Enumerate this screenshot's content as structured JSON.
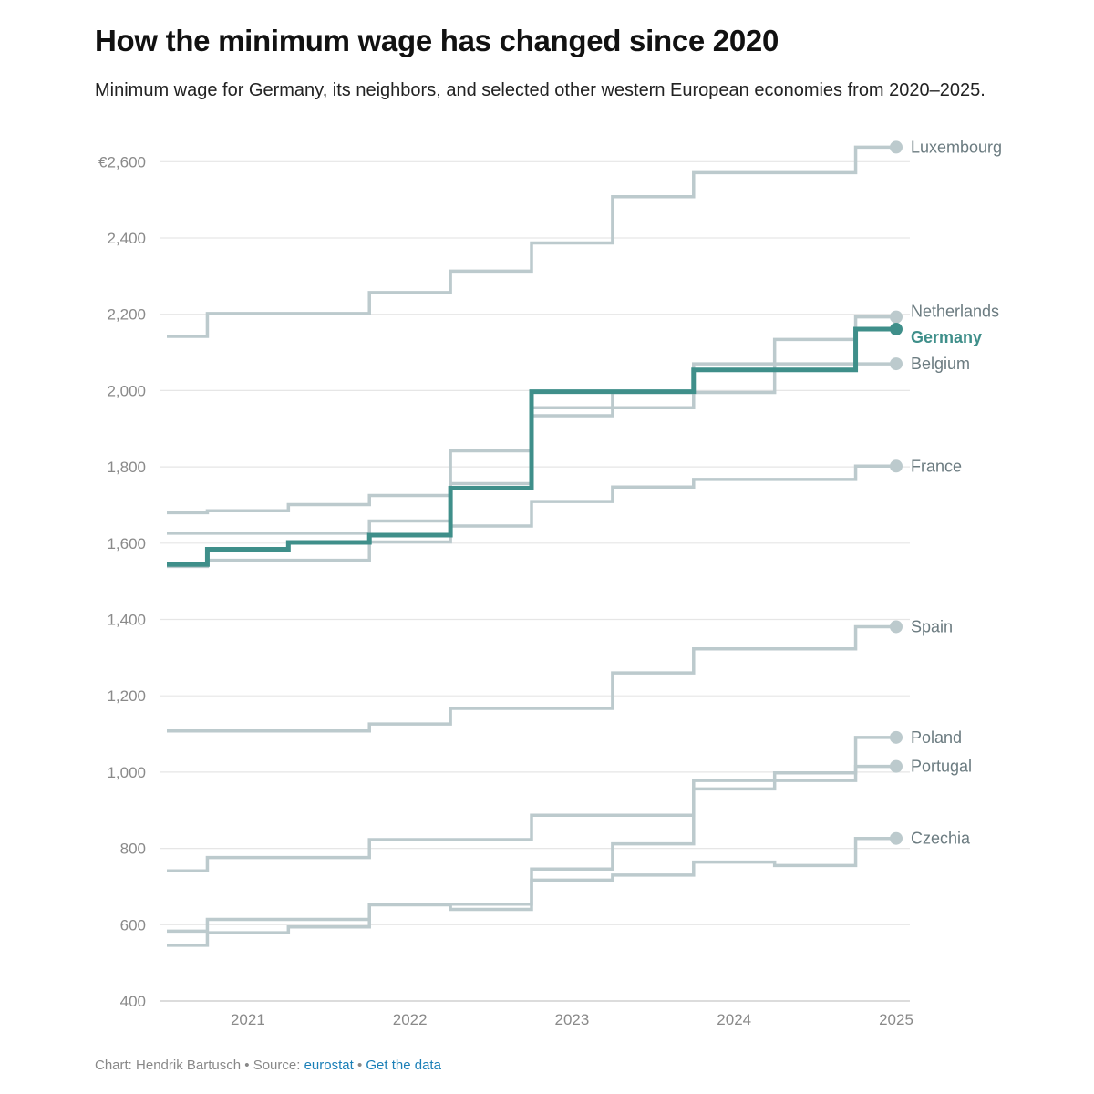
{
  "title": "How the minimum wage has changed since 2020",
  "subtitle": "Minimum wage for Germany, its neighbors, and selected other western European economies from 2020–2025.",
  "footer": {
    "credit": "Chart: Hendrik Bartusch",
    "separator": "•",
    "source_prefix": "Source:",
    "source_link": "eurostat",
    "data_link": "Get the data"
  },
  "colors": {
    "highlight": "#3f8f8a",
    "series": "#bccacd",
    "grid": "#e6e6e6",
    "axis_text": "#8a8a8a",
    "label_text": "#6b7b80"
  },
  "chart_data": {
    "type": "line",
    "step": "after",
    "title": "How the minimum wage has changed since 2020",
    "xlim": [
      2020.5,
      2025
    ],
    "ylim": [
      400,
      2650
    ],
    "x_ticks": [
      2021,
      2022,
      2023,
      2024,
      2025
    ],
    "x_tick_labels": [
      "2021",
      "2022",
      "2023",
      "2024",
      "2025"
    ],
    "y_ticks": [
      400,
      600,
      800,
      1000,
      1200,
      1400,
      1600,
      1800,
      2000,
      2200,
      2400,
      2600
    ],
    "y_tick_labels": [
      "400",
      "600",
      "800",
      "1,000",
      "1,200",
      "1,400",
      "1,600",
      "1,800",
      "2,000",
      "2,200",
      "2,400",
      "€2,600"
    ],
    "grid": true,
    "x": [
      2020.5,
      2020.75,
      2021.25,
      2021.75,
      2022.25,
      2022.75,
      2023.25,
      2023.75,
      2024.25,
      2024.75,
      2025
    ],
    "series": [
      {
        "name": "Luxembourg",
        "highlight": false,
        "values": [
          2142,
          2202,
          2202,
          2257,
          2313,
          2387,
          2508,
          2571,
          2571,
          2638,
          2638
        ]
      },
      {
        "name": "Netherlands",
        "highlight": false,
        "values": [
          1680,
          1685,
          1701,
          1725,
          1756,
          1934,
          1995,
          1995,
          2134,
          2193,
          2193
        ]
      },
      {
        "name": "Germany",
        "highlight": true,
        "values": [
          1544,
          1584,
          1602,
          1621,
          1744,
          1997,
          1997,
          2054,
          2054,
          2161,
          2161
        ]
      },
      {
        "name": "Belgium",
        "highlight": false,
        "values": [
          1626,
          1626,
          1626,
          1658,
          1842,
          1955,
          1955,
          2070,
          2070,
          2070,
          2070
        ]
      },
      {
        "name": "France",
        "highlight": false,
        "values": [
          1539,
          1555,
          1555,
          1603,
          1645,
          1709,
          1747,
          1767,
          1767,
          1802,
          1802
        ]
      },
      {
        "name": "Spain",
        "highlight": false,
        "values": [
          1108,
          1108,
          1108,
          1126,
          1167,
          1167,
          1260,
          1323,
          1323,
          1381,
          1381
        ]
      },
      {
        "name": "Poland",
        "highlight": false,
        "values": [
          583,
          614,
          614,
          654,
          654,
          746,
          812,
          978,
          978,
          1091,
          1091
        ]
      },
      {
        "name": "Portugal",
        "highlight": false,
        "values": [
          741,
          776,
          776,
          823,
          823,
          887,
          887,
          956,
          998,
          1015,
          1015
        ]
      },
      {
        "name": "Czechia",
        "highlight": false,
        "values": [
          546,
          579,
          594,
          652,
          640,
          717,
          730,
          764,
          755,
          826,
          826
        ]
      }
    ]
  }
}
